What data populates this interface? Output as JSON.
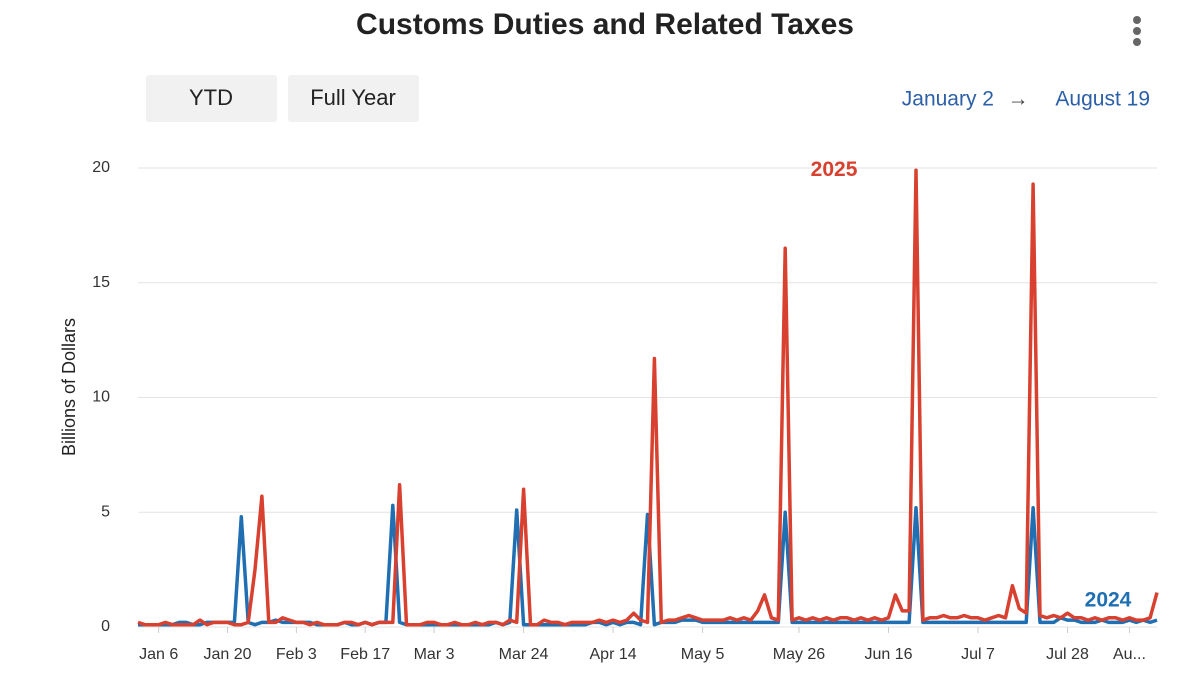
{
  "controls": {
    "buttons": [
      "YTD",
      "Full Year"
    ],
    "range_start": "January 2",
    "range_separator": "→",
    "range_end": "August 19"
  },
  "chart_data": {
    "type": "line",
    "title": "Customs Duties and Related Taxes",
    "y_label": "Billions of Dollars",
    "categories": [
      null,
      null,
      null,
      "Jan 6",
      null,
      null,
      null,
      null,
      null,
      null,
      null,
      null,
      null,
      "Jan 20",
      null,
      null,
      null,
      null,
      null,
      null,
      null,
      null,
      null,
      "Feb 3",
      null,
      null,
      null,
      null,
      null,
      null,
      null,
      null,
      null,
      "Feb 17",
      null,
      null,
      null,
      null,
      null,
      null,
      null,
      null,
      null,
      "Mar 3",
      null,
      null,
      null,
      null,
      null,
      null,
      null,
      null,
      null,
      null,
      null,
      null,
      "Mar 24",
      null,
      null,
      null,
      null,
      null,
      null,
      null,
      null,
      null,
      null,
      null,
      null,
      "Apr 14",
      null,
      null,
      null,
      null,
      null,
      null,
      null,
      null,
      null,
      null,
      null,
      null,
      "May 5",
      null,
      null,
      null,
      null,
      null,
      null,
      null,
      null,
      null,
      null,
      null,
      null,
      null,
      "May 26",
      null,
      null,
      null,
      null,
      null,
      null,
      null,
      null,
      null,
      null,
      null,
      null,
      "Jun 16",
      null,
      null,
      null,
      null,
      null,
      null,
      null,
      null,
      null,
      null,
      null,
      null,
      "Jul 7",
      null,
      null,
      null,
      null,
      null,
      null,
      null,
      null,
      null,
      null,
      null,
      null,
      "Jul 28",
      null,
      null,
      null,
      null,
      null,
      null,
      null,
      null,
      "Au...",
      null,
      null,
      null,
      null
    ],
    "series": [
      {
        "name": "2024",
        "color": "#1f6fb2",
        "values": [
          0.1,
          0.1,
          0.1,
          0.1,
          0.1,
          0.1,
          0.2,
          0.2,
          0.1,
          0.1,
          0.2,
          0.2,
          0.2,
          0.2,
          0.2,
          4.8,
          0.2,
          0.1,
          0.2,
          0.2,
          0.3,
          0.2,
          0.2,
          0.2,
          0.2,
          0.2,
          0.1,
          0.1,
          0.1,
          0.1,
          0.2,
          0.1,
          0.1,
          0.2,
          0.1,
          0.2,
          0.2,
          5.3,
          0.2,
          0.1,
          0.1,
          0.1,
          0.1,
          0.1,
          0.1,
          0.1,
          0.1,
          0.1,
          0.1,
          0.1,
          0.1,
          0.1,
          0.2,
          0.1,
          0.2,
          5.1,
          0.1,
          0.1,
          0.1,
          0.1,
          0.1,
          0.1,
          0.1,
          0.1,
          0.1,
          0.1,
          0.2,
          0.2,
          0.1,
          0.2,
          0.1,
          0.2,
          0.2,
          0.1,
          4.9,
          0.1,
          0.2,
          0.2,
          0.2,
          0.3,
          0.3,
          0.3,
          0.2,
          0.2,
          0.2,
          0.2,
          0.2,
          0.2,
          0.2,
          0.2,
          0.2,
          0.2,
          0.2,
          0.2,
          5.0,
          0.2,
          0.2,
          0.2,
          0.2,
          0.2,
          0.2,
          0.2,
          0.2,
          0.2,
          0.2,
          0.2,
          0.2,
          0.2,
          0.2,
          0.2,
          0.2,
          0.2,
          0.2,
          5.2,
          0.2,
          0.2,
          0.2,
          0.2,
          0.2,
          0.2,
          0.2,
          0.2,
          0.2,
          0.2,
          0.2,
          0.2,
          0.2,
          0.2,
          0.2,
          0.2,
          5.2,
          0.2,
          0.2,
          0.2,
          0.4,
          0.3,
          0.3,
          0.2,
          0.2,
          0.2,
          0.3,
          0.2,
          0.2,
          0.2,
          0.3,
          0.2,
          0.3,
          0.2,
          0.3
        ]
      },
      {
        "name": "2025",
        "color": "#d8412f",
        "values": [
          0.2,
          0.1,
          0.1,
          0.1,
          0.2,
          0.1,
          0.1,
          0.1,
          0.1,
          0.3,
          0.1,
          0.2,
          0.2,
          0.2,
          0.1,
          0.1,
          0.2,
          2.5,
          5.7,
          0.2,
          0.2,
          0.4,
          0.3,
          0.2,
          0.2,
          0.1,
          0.2,
          0.1,
          0.1,
          0.1,
          0.2,
          0.2,
          0.1,
          0.2,
          0.1,
          0.2,
          0.2,
          0.2,
          6.2,
          0.1,
          0.1,
          0.1,
          0.2,
          0.2,
          0.1,
          0.1,
          0.2,
          0.1,
          0.1,
          0.2,
          0.1,
          0.2,
          0.2,
          0.1,
          0.3,
          0.2,
          6.0,
          0.1,
          0.1,
          0.3,
          0.2,
          0.2,
          0.1,
          0.2,
          0.2,
          0.2,
          0.2,
          0.3,
          0.2,
          0.3,
          0.2,
          0.3,
          0.6,
          0.3,
          0.2,
          11.7,
          0.2,
          0.3,
          0.3,
          0.4,
          0.5,
          0.4,
          0.3,
          0.3,
          0.3,
          0.3,
          0.4,
          0.3,
          0.4,
          0.3,
          0.7,
          1.4,
          0.4,
          0.3,
          16.5,
          0.3,
          0.4,
          0.3,
          0.4,
          0.3,
          0.4,
          0.3,
          0.4,
          0.4,
          0.3,
          0.4,
          0.3,
          0.4,
          0.3,
          0.4,
          1.4,
          0.7,
          0.7,
          19.9,
          0.3,
          0.4,
          0.4,
          0.5,
          0.4,
          0.4,
          0.5,
          0.4,
          0.4,
          0.3,
          0.4,
          0.5,
          0.4,
          1.8,
          0.8,
          0.6,
          19.3,
          0.5,
          0.4,
          0.5,
          0.4,
          0.6,
          0.4,
          0.4,
          0.3,
          0.4,
          0.3,
          0.4,
          0.4,
          0.3,
          0.4,
          0.3,
          0.3,
          0.4,
          1.5
        ]
      }
    ],
    "ylim": [
      0,
      20
    ],
    "yticks": [
      0,
      5,
      10,
      15,
      20
    ],
    "grid": true
  }
}
